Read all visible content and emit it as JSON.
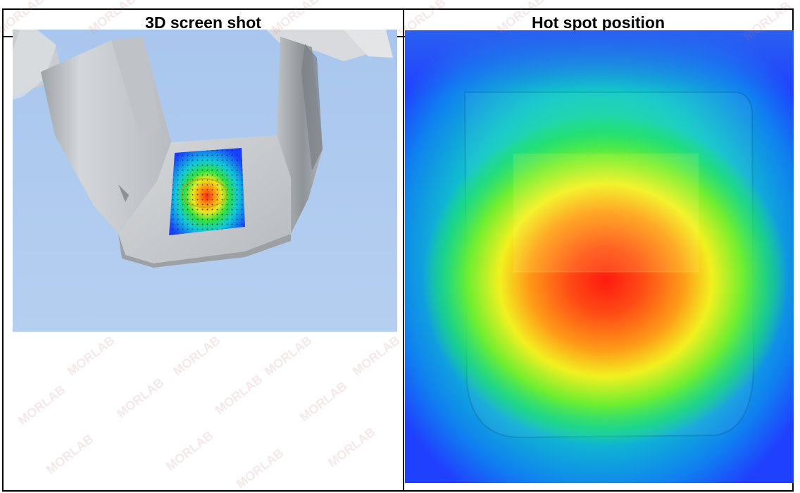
{
  "table": {
    "col1_header": "3D screen shot",
    "col2_header": "Hot spot position"
  },
  "watermark": {
    "text": "MORLAB"
  },
  "colors": {
    "screenshot_background": "#b0cbee",
    "phantom_gray": "#cfd2d6",
    "heat_low": "#1e3cff",
    "heat_high": "#ff2010"
  }
}
